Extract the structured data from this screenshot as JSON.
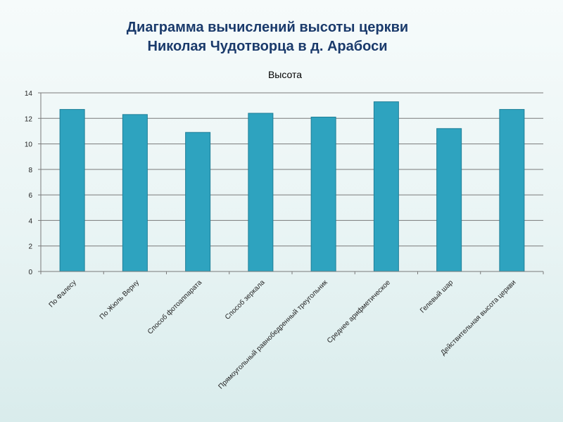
{
  "slide": {
    "title_line1": "Диаграмма вычислений высоты церкви",
    "title_line2": "Николая Чудотворца в д. Арабоси"
  },
  "colors": {
    "bar": "#2ea3bf",
    "bar_edge": "#1f7f98",
    "title": "#1a3a6b",
    "grid": "#7a7a7a"
  },
  "chart_data": {
    "type": "bar",
    "title": "Высота",
    "xlabel": "",
    "ylabel": "",
    "ylim": [
      0,
      14
    ],
    "yticks": [
      0,
      2,
      4,
      6,
      8,
      10,
      12,
      14
    ],
    "grid": true,
    "categories": [
      "По Фалесу",
      "По Жюль Верну",
      "Способ фотоаппарата",
      "Способ зеркала",
      "Прямоугольный равнобедренный треугольник",
      "Среднее арифметическое",
      "Гелевый шар",
      "Действительная высота церкви"
    ],
    "series": [
      {
        "values": [
          12.7,
          12.3,
          10.9,
          12.4,
          12.1,
          13.3,
          11.2,
          12.7
        ]
      }
    ]
  }
}
